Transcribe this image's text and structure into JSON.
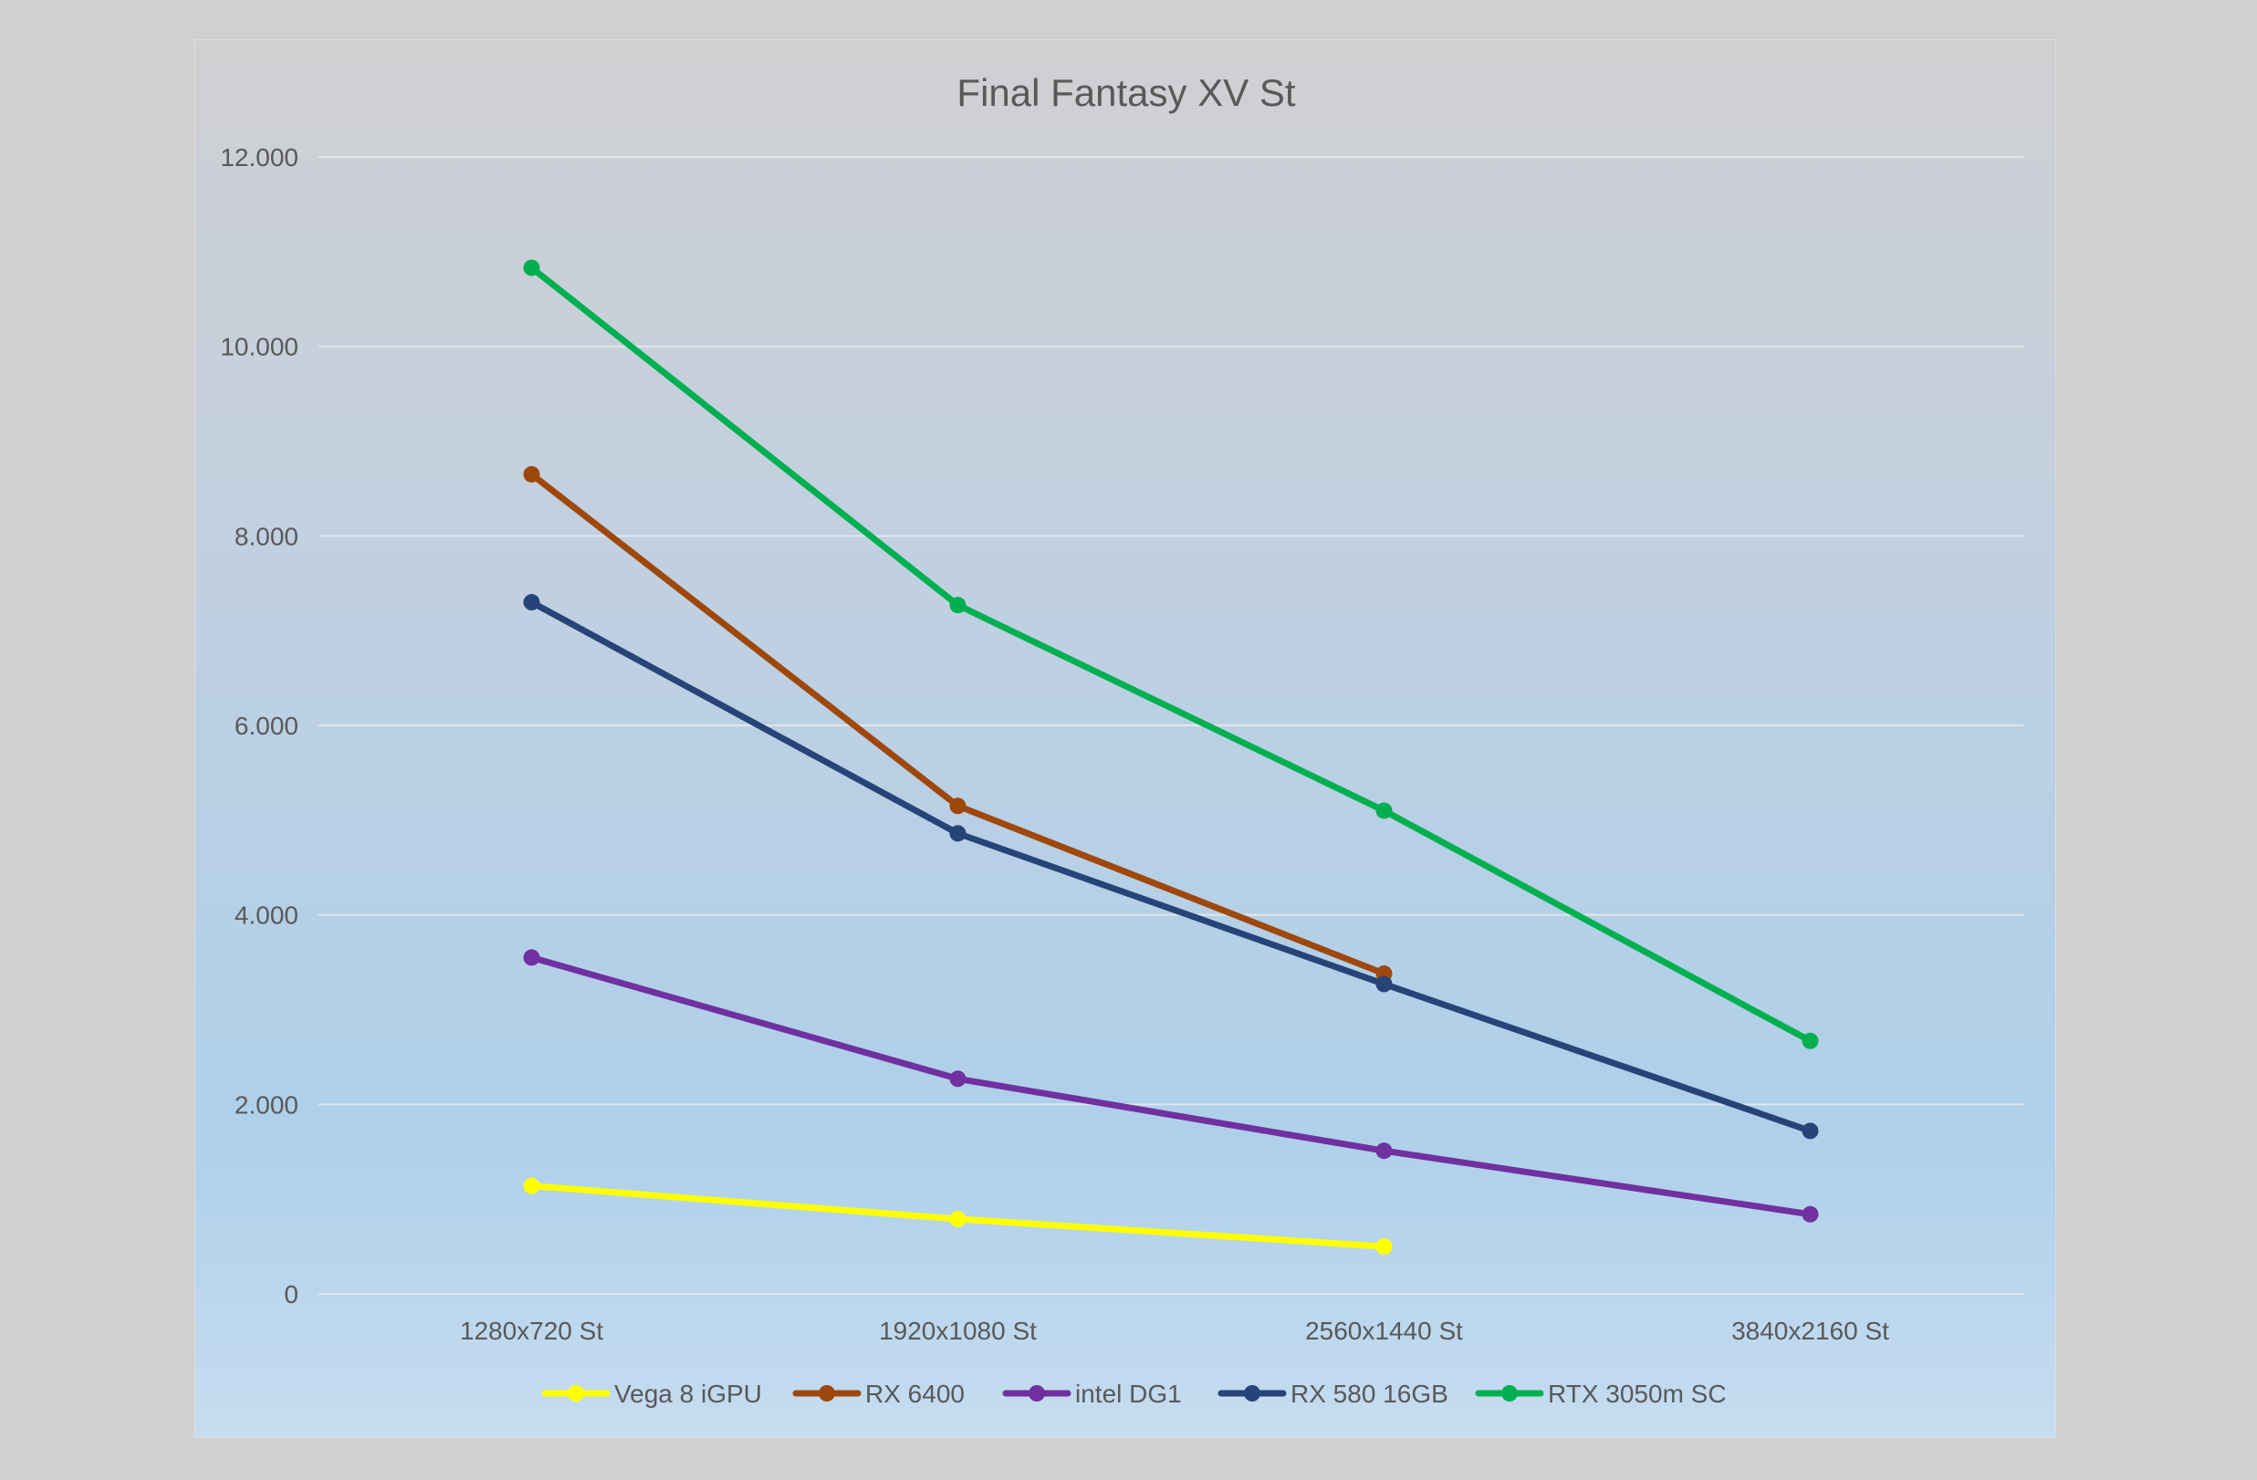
{
  "chart_data": {
    "type": "line",
    "title": "Final Fantasy XV St",
    "xlabel": "",
    "ylabel": "",
    "categories": [
      "1280x720 St",
      "1920x1080 St",
      "2560x1440 St",
      "3840x2160 St"
    ],
    "ylim": [
      0,
      12000
    ],
    "yticks": [
      0,
      2000,
      4000,
      6000,
      8000,
      10000,
      12000
    ],
    "ytick_labels": [
      "0",
      "2.000",
      "4.000",
      "6.000",
      "8.000",
      "10.000",
      "12.000"
    ],
    "grid": true,
    "legend": "bottom",
    "series": [
      {
        "name": "Vega 8 iGPU",
        "color": "#ffff00",
        "values": [
          1140,
          790,
          500,
          null
        ]
      },
      {
        "name": "RX 6400",
        "color": "#9e480e",
        "values": [
          8650,
          5150,
          3380,
          null
        ]
      },
      {
        "name": "intel DG1",
        "color": "#7030a0",
        "values": [
          3550,
          2270,
          1510,
          840
        ]
      },
      {
        "name": "RX 580 16GB",
        "color": "#264478",
        "values": [
          7300,
          4860,
          3270,
          1720
        ]
      },
      {
        "name": "RTX 3050m SC",
        "color": "#00b050",
        "values": [
          10830,
          7270,
          5100,
          2670
        ]
      }
    ]
  }
}
